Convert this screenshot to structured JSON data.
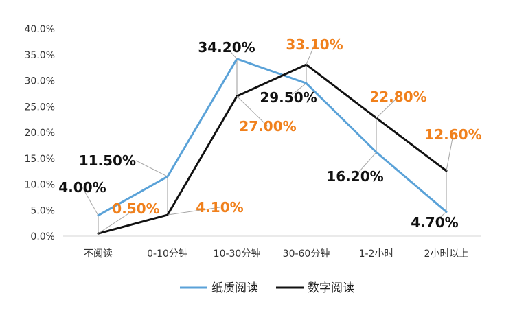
{
  "chart_data": {
    "type": "line",
    "categories": [
      "不阅读",
      "0-10分钟",
      "10-30分钟",
      "30-60分钟",
      "1-2小时",
      "2小时以上"
    ],
    "series": [
      {
        "name": "纸质阅读",
        "values": [
          4.0,
          11.5,
          34.2,
          29.5,
          16.2,
          4.7
        ],
        "labels": [
          "4.00%",
          "11.50%",
          "34.20%",
          "29.50%",
          "16.20%",
          "4.70%"
        ],
        "color": "#5aa2d8",
        "label_color": "#111111"
      },
      {
        "name": "数字阅读",
        "values": [
          0.5,
          4.1,
          27.0,
          33.1,
          22.8,
          12.6
        ],
        "labels": [
          "0.50%",
          "4.10%",
          "27.00%",
          "33.10%",
          "22.80%",
          "12.60%"
        ],
        "color": "#111111",
        "label_color": "#f0801c"
      }
    ],
    "y_ticks": [
      "0.0%",
      "5.0%",
      "10.0%",
      "15.0%",
      "20.0%",
      "25.0%",
      "30.0%",
      "35.0%",
      "40.0%"
    ],
    "ylim": [
      0,
      40
    ],
    "grid": false,
    "legend_position": "bottom"
  }
}
